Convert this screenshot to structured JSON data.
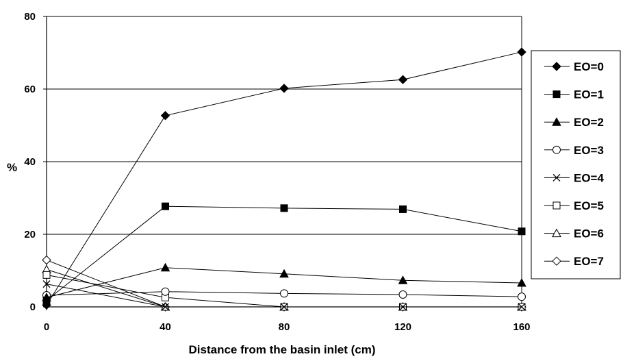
{
  "chart_data": {
    "type": "line",
    "xlabel": "Distance from the basin inlet (cm)",
    "ylabel": "%",
    "x": [
      0,
      40,
      80,
      120,
      160
    ],
    "xticks": [
      "0",
      "40",
      "80",
      "120",
      "160"
    ],
    "yticks": [
      "0",
      "20",
      "40",
      "60",
      "80"
    ],
    "xlim": [
      0,
      160
    ],
    "ylim": [
      0,
      80
    ],
    "grid": "horizontal",
    "legend_position": "right",
    "series": [
      {
        "name": "EO=0",
        "marker": "diamond-filled",
        "values": [
          0.5,
          52.7,
          60.2,
          62.6,
          70.2
        ]
      },
      {
        "name": "EO=1",
        "marker": "square-filled",
        "values": [
          1.8,
          27.7,
          27.2,
          26.9,
          20.8
        ]
      },
      {
        "name": "EO=2",
        "marker": "triangle-filled",
        "values": [
          2.6,
          10.8,
          9.1,
          7.3,
          6.6
        ]
      },
      {
        "name": "EO=3",
        "marker": "circle-open",
        "values": [
          3.2,
          4.2,
          3.7,
          3.4,
          2.8
        ]
      },
      {
        "name": "EO=4",
        "marker": "x",
        "values": [
          6.3,
          0,
          0,
          0,
          0
        ]
      },
      {
        "name": "EO=5",
        "marker": "square-open",
        "values": [
          8.8,
          2.6,
          0,
          0,
          0
        ]
      },
      {
        "name": "EO=6",
        "marker": "triangle-open",
        "values": [
          10.3,
          0,
          0,
          0,
          0
        ]
      },
      {
        "name": "EO=7",
        "marker": "diamond-open",
        "values": [
          12.9,
          0,
          0,
          0,
          0
        ]
      }
    ]
  }
}
